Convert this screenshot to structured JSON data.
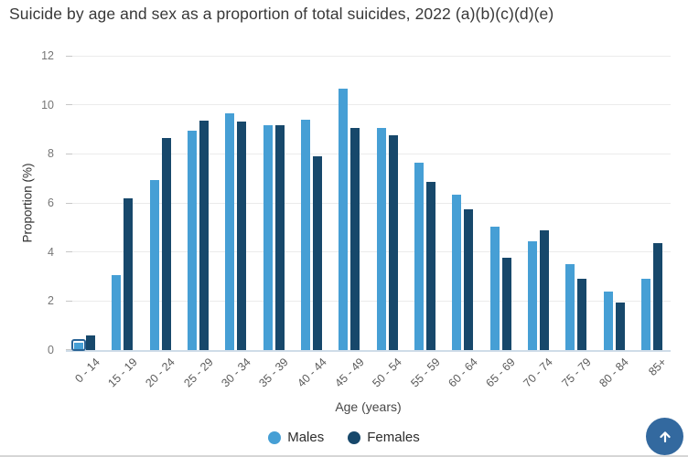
{
  "chart_data": {
    "type": "bar",
    "title": "Suicide by age and sex as a proportion of total suicides, 2022 (a)(b)(c)(d)(e)",
    "categories": [
      "0 - 14",
      "15 - 19",
      "20 - 24",
      "25 - 29",
      "30 - 34",
      "35 - 39",
      "40 - 44",
      "45 - 49",
      "50 - 54",
      "55 - 59",
      "60 - 64",
      "65 - 69",
      "70 - 74",
      "75 - 79",
      "80 - 84",
      "85+"
    ],
    "series": [
      {
        "name": "Males",
        "color": "#469FD5",
        "values": [
          0.3,
          3.05,
          6.95,
          8.95,
          9.65,
          9.15,
          9.4,
          10.65,
          9.05,
          7.65,
          6.35,
          5.05,
          4.45,
          3.5,
          2.4,
          2.9
        ]
      },
      {
        "name": "Females",
        "color": "#17486B",
        "values": [
          0.6,
          6.2,
          8.65,
          9.35,
          9.3,
          9.15,
          7.9,
          9.05,
          8.75,
          6.85,
          5.75,
          3.75,
          4.9,
          2.9,
          1.95,
          4.35
        ]
      }
    ],
    "xlabel": "Age (years)",
    "ylabel": "Proportion (%)",
    "ylim": [
      0,
      12
    ],
    "yticks": [
      0,
      2,
      4,
      6,
      8,
      10,
      12
    ],
    "grid": true,
    "legend_position": "bottom",
    "highlight": {
      "series": "Males",
      "category": "0 - 14"
    }
  },
  "colors": {
    "males": "#469FD5",
    "females": "#17486B",
    "gridline": "#ebebeb",
    "axis_line": "#cfdce8",
    "highlight_ring": "#2a6496",
    "scroll_button": "#33699F"
  },
  "scroll_button": {
    "icon": "up-arrow-icon"
  }
}
